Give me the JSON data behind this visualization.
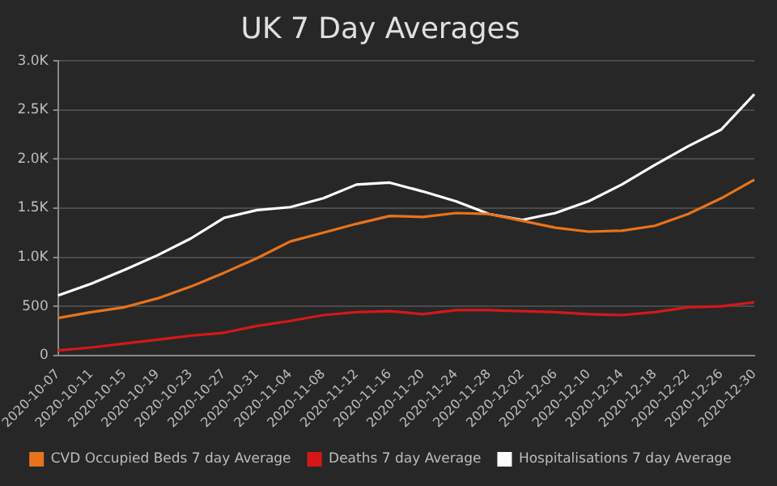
{
  "chart_data": {
    "type": "line",
    "title": "UK 7 Day Averages",
    "categories": [
      "2020-10-07",
      "2020-10-11",
      "2020-10-15",
      "2020-10-19",
      "2020-10-23",
      "2020-10-27",
      "2020-10-31",
      "2020-11-04",
      "2020-11-08",
      "2020-11-12",
      "2020-11-16",
      "2020-11-20",
      "2020-11-24",
      "2020-11-28",
      "2020-12-02",
      "2020-12-06",
      "2020-12-10",
      "2020-12-14",
      "2020-12-18",
      "2020-12-22",
      "2020-12-26",
      "2020-12-30"
    ],
    "series": [
      {
        "name": "CVD Occupied Beds 7 day Average",
        "color": "#e8731c",
        "values": [
          380,
          440,
          490,
          580,
          700,
          840,
          990,
          1160,
          1250,
          1340,
          1420,
          1410,
          1450,
          1440,
          1370,
          1300,
          1260,
          1270,
          1320,
          1440,
          1600,
          1790
        ]
      },
      {
        "name": "Deaths 7 day Average",
        "color": "#d41818",
        "values": [
          50,
          80,
          120,
          160,
          200,
          230,
          300,
          350,
          410,
          440,
          450,
          420,
          460,
          460,
          450,
          440,
          420,
          410,
          440,
          490,
          500,
          540
        ]
      },
      {
        "name": "Hospitalisations 7 day Average",
        "color": "#ffffff",
        "values": [
          610,
          730,
          870,
          1020,
          1190,
          1400,
          1480,
          1510,
          1600,
          1740,
          1760,
          1670,
          1570,
          1440,
          1380,
          1450,
          1570,
          1740,
          1940,
          2130,
          2300,
          2660
        ]
      }
    ],
    "ylim": [
      0,
      3000
    ],
    "yticks": [
      0,
      500,
      {
        "value": 1000,
        "label": "1.0K"
      },
      {
        "value": 1500,
        "label": "1.5K"
      },
      {
        "value": 2000,
        "label": "2.0K"
      },
      {
        "value": 2500,
        "label": "2.5K"
      },
      {
        "value": 3000,
        "label": "3.0K"
      }
    ],
    "grid": "y",
    "legend": "bottom",
    "marker": "none",
    "line_style": "solid"
  }
}
